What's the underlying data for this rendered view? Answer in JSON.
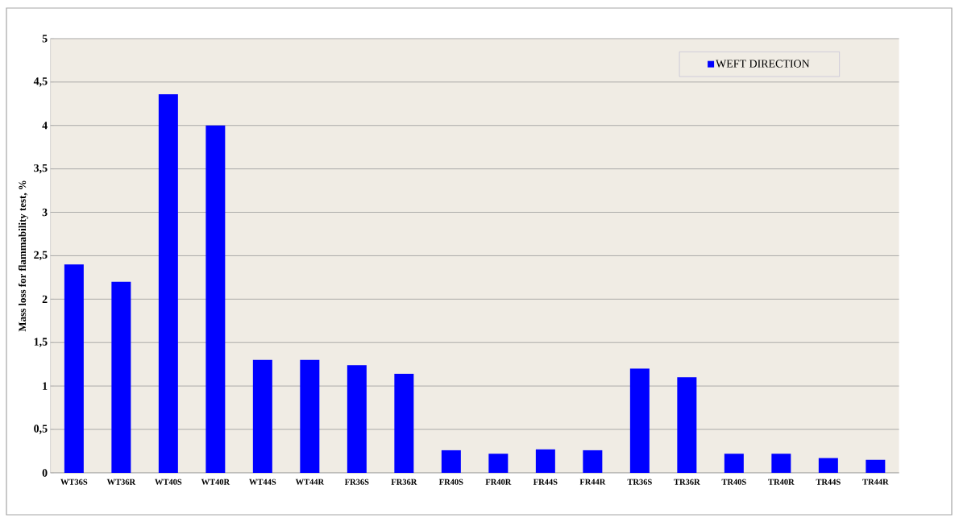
{
  "chart_data": {
    "type": "bar",
    "ylabel": "Mass loss for flammability  test, %",
    "categories": [
      "WT36S",
      "WT36R",
      "WT40S",
      "WT40R",
      "WT44S",
      "WT44R",
      "FR36S",
      "FR36R",
      "FR40S",
      "FR40R",
      "FR44S",
      "FR44R",
      "TR36S",
      "TR36R",
      "TR40S",
      "TR40R",
      "TR44S",
      "TR44R"
    ],
    "series": [
      {
        "name": "WEFT DIRECTION",
        "color": "#0000ff",
        "values": [
          2.4,
          2.2,
          4.36,
          4.0,
          1.3,
          1.3,
          1.24,
          1.14,
          0.26,
          0.22,
          0.27,
          0.26,
          1.2,
          1.1,
          0.22,
          0.22,
          0.17,
          0.15
        ]
      }
    ],
    "ylim": [
      0,
      5
    ],
    "yticks": [
      0,
      {
        "value": 0.5,
        "label": "0,5"
      },
      1,
      {
        "value": 1.5,
        "label": "1,5"
      },
      2,
      {
        "value": 2.5,
        "label": "2,5"
      },
      3,
      {
        "value": 3.5,
        "label": "3,5"
      },
      4,
      {
        "value": 4.5,
        "label": "4,5"
      },
      5
    ],
    "grid": "y",
    "legend": "top right"
  }
}
